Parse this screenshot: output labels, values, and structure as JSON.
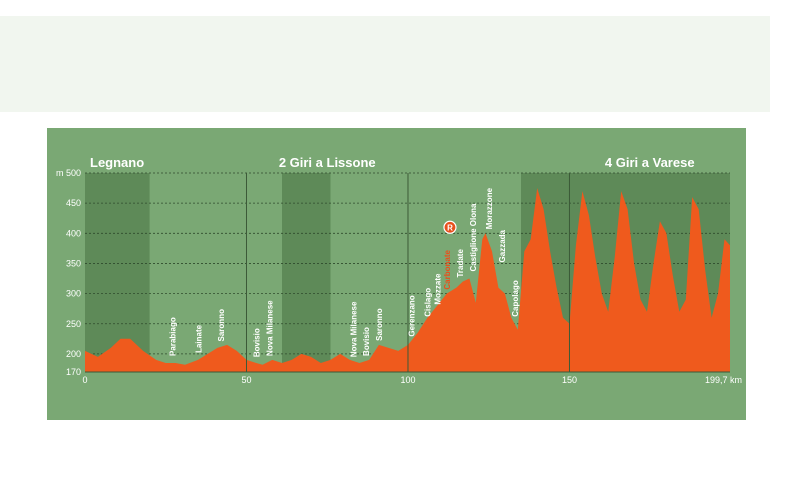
{
  "chart_data": {
    "type": "area",
    "title": "",
    "xlabel": "",
    "ylabel": "",
    "y_unit": "m",
    "x_unit": "km",
    "xlim": [
      0,
      199.7
    ],
    "ylim": [
      170,
      500
    ],
    "y_ticks": [
      "m 500",
      "450",
      "400",
      "350",
      "300",
      "250",
      "200",
      "170"
    ],
    "y_tick_values": [
      500,
      450,
      400,
      350,
      300,
      250,
      200,
      170
    ],
    "x_ticks": [
      "0",
      "50",
      "100",
      "150",
      "199,7 km"
    ],
    "x_tick_values": [
      0,
      50,
      100,
      150,
      199.7
    ],
    "grid": true,
    "sections": [
      {
        "label": "Legnano",
        "start": 0,
        "end": 50
      },
      {
        "label": "2 Giri a Lissone",
        "start": 50,
        "end": 100
      },
      {
        "label": "4 Giri a Varese",
        "start": 150,
        "end": 199.7
      }
    ],
    "shaded_bands": [
      [
        0,
        20
      ],
      [
        61,
        76
      ],
      [
        135,
        199.7
      ]
    ],
    "dividers": [
      50,
      100,
      150
    ],
    "profile": {
      "x": [
        0,
        4,
        8,
        11,
        14,
        18,
        22,
        25,
        28,
        31,
        35,
        38,
        41,
        44,
        47,
        50,
        53,
        55,
        58,
        61,
        64,
        67,
        70,
        73,
        76,
        79,
        82,
        85,
        88,
        91,
        94,
        97,
        100,
        103,
        106,
        109,
        112,
        115,
        117,
        119,
        121,
        123,
        124,
        126,
        128,
        130,
        132,
        134,
        136,
        138,
        140,
        142,
        144,
        146,
        148,
        150,
        152,
        154,
        156,
        158,
        160,
        162,
        164,
        166,
        168,
        170,
        172,
        174,
        176,
        178,
        180,
        182,
        184,
        186,
        188,
        190,
        192,
        194,
        196,
        198,
        199.7
      ],
      "y": [
        205,
        195,
        210,
        225,
        225,
        205,
        190,
        185,
        185,
        182,
        190,
        200,
        210,
        215,
        205,
        190,
        185,
        182,
        190,
        185,
        190,
        200,
        195,
        185,
        190,
        200,
        190,
        185,
        190,
        215,
        210,
        205,
        215,
        235,
        260,
        280,
        300,
        310,
        320,
        325,
        285,
        390,
        400,
        370,
        310,
        300,
        260,
        240,
        370,
        390,
        475,
        440,
        370,
        310,
        260,
        250,
        380,
        470,
        430,
        360,
        300,
        270,
        360,
        470,
        440,
        350,
        290,
        270,
        350,
        420,
        400,
        330,
        270,
        290,
        460,
        440,
        340,
        260,
        300,
        390,
        380
      ]
    },
    "places": [
      {
        "label": "Parabiago",
        "x": 28,
        "y": 190,
        "highlight": false
      },
      {
        "label": "Lainate",
        "x": 36,
        "y": 195,
        "highlight": false
      },
      {
        "label": "Saronno",
        "x": 43,
        "y": 214,
        "highlight": false
      },
      {
        "label": "Bovisio",
        "x": 54,
        "y": 188,
        "highlight": false
      },
      {
        "label": "Nova Milanese",
        "x": 58,
        "y": 190,
        "highlight": false
      },
      {
        "label": "Nova Milanese",
        "x": 84,
        "y": 188,
        "highlight": false
      },
      {
        "label": "Bovisio",
        "x": 88,
        "y": 190,
        "highlight": false
      },
      {
        "label": "Saronno",
        "x": 92,
        "y": 215,
        "highlight": false
      },
      {
        "label": "Gerenzano",
        "x": 102,
        "y": 222,
        "highlight": false
      },
      {
        "label": "Cislago",
        "x": 107,
        "y": 255,
        "highlight": false
      },
      {
        "label": "Mozzate",
        "x": 110,
        "y": 275,
        "highlight": false
      },
      {
        "label": "Carbonate",
        "x": 113,
        "y": 300,
        "highlight": true
      },
      {
        "label": "Tradate",
        "x": 117,
        "y": 320,
        "highlight": false
      },
      {
        "label": "Castiglione Olona",
        "x": 121,
        "y": 330,
        "highlight": false
      },
      {
        "label": "Morazzone",
        "x": 126,
        "y": 400,
        "highlight": false
      },
      {
        "label": "Gazzada",
        "x": 130,
        "y": 345,
        "highlight": false
      },
      {
        "label": "Capolago",
        "x": 134,
        "y": 255,
        "highlight": false
      }
    ],
    "markers": [
      {
        "label": "R",
        "x": 113,
        "y": 410
      }
    ],
    "colors": {
      "panel": "#7aa874",
      "band": "#5e8a58",
      "profile": "#ef5a1d",
      "grid": "#2f4a2c",
      "text": "#ffffff",
      "highlight": "#e8501d"
    }
  }
}
